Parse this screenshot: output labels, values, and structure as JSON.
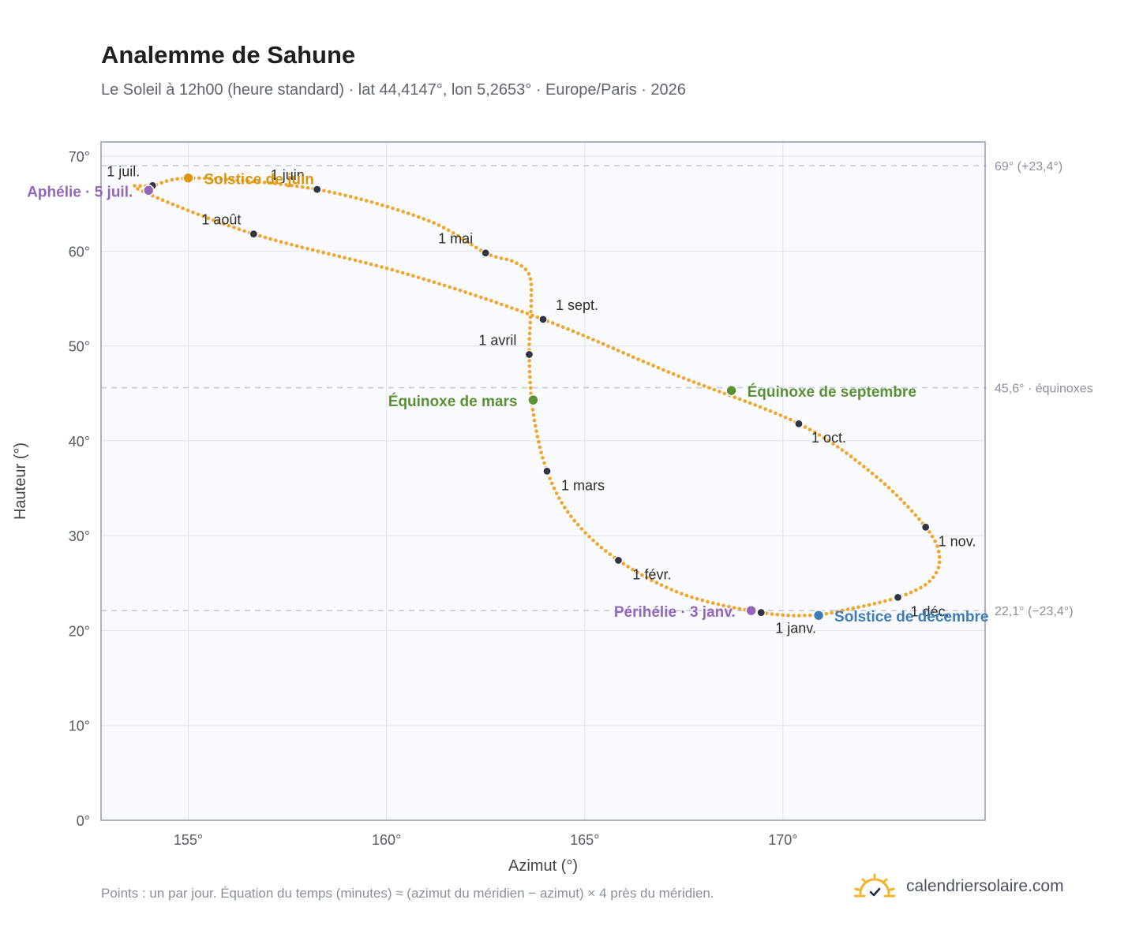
{
  "header": {
    "title": "Analemme de Sahune",
    "subtitle": "Le Soleil à 12h00 (heure standard) · lat 44,4147°, lon 5,2653° · Europe/Paris · 2026"
  },
  "footer": {
    "note": "Points : un par jour. Équation du temps (minutes) ≈ (azimut du méridien − azimut) × 4 près du méridien.",
    "brand": "calendriersolaire.com",
    "brand_icon": "sun-logo-icon"
  },
  "colors": {
    "curve": "#F2A42B",
    "month_marker": "#2F3542",
    "solstice_june": "#D9960E",
    "solstice_december": "#3E7CB8",
    "equinox": "#5B9135",
    "aphelion_perihelion": "#9466BB",
    "reference_line": "#C3CCD8",
    "plot_bg": "#F8FAFD",
    "grid": "#E3E8EF"
  },
  "chart_data": {
    "type": "scatter",
    "xlabel": "Azimut (°)",
    "ylabel": "Hauteur (°)",
    "xlim": [
      152.8,
      175.1
    ],
    "ylim": [
      0,
      71.5
    ],
    "xticks": [
      155,
      160,
      165,
      170
    ],
    "xtick_labels": [
      "155°",
      "160°",
      "165°",
      "170°"
    ],
    "yticks": [
      0,
      10,
      20,
      30,
      40,
      50,
      60,
      70
    ],
    "ytick_labels": [
      "0°",
      "10°",
      "20°",
      "30°",
      "40°",
      "50°",
      "60°",
      "70°"
    ],
    "grid": true,
    "reference_lines": [
      {
        "y": 69.0,
        "label": "69° (+23,4°)"
      },
      {
        "y": 45.6,
        "label": "45,6° · équinoxes"
      },
      {
        "y": 22.1,
        "label": "22,1° (−23,4°)"
      }
    ],
    "month_markers": [
      {
        "label": "1 janv.",
        "az": 169.45,
        "alt": 21.9
      },
      {
        "label": "1 févr.",
        "az": 165.85,
        "alt": 27.4
      },
      {
        "label": "1 mars",
        "az": 164.05,
        "alt": 36.8
      },
      {
        "label": "1 avril",
        "az": 163.6,
        "alt": 49.1
      },
      {
        "label": "1 mai",
        "az": 162.5,
        "alt": 59.8
      },
      {
        "label": "1 juin",
        "az": 158.25,
        "alt": 66.5
      },
      {
        "label": "1 juil.",
        "az": 154.1,
        "alt": 66.9
      },
      {
        "label": "1 août",
        "az": 156.65,
        "alt": 61.8
      },
      {
        "label": "1 sept.",
        "az": 163.95,
        "alt": 52.8
      },
      {
        "label": "1 oct.",
        "az": 170.4,
        "alt": 41.8
      },
      {
        "label": "1 nov.",
        "az": 173.6,
        "alt": 30.9
      },
      {
        "label": "1 déc.",
        "az": 172.9,
        "alt": 23.5
      }
    ],
    "events": [
      {
        "label": "Solstice de juin",
        "az": 155.0,
        "alt": 67.7,
        "kind": "solstice_june"
      },
      {
        "label": "Solstice de décembre",
        "az": 170.9,
        "alt": 21.6,
        "kind": "solstice_december"
      },
      {
        "label": "Équinoxe de mars",
        "az": 163.7,
        "alt": 44.3,
        "kind": "equinox"
      },
      {
        "label": "Équinoxe de septembre",
        "az": 168.7,
        "alt": 45.3,
        "kind": "equinox"
      },
      {
        "label": "Aphélie · 5 juil.",
        "az": 154.0,
        "alt": 66.4,
        "kind": "aphelion_perihelion"
      },
      {
        "label": "Périhélie · 3 janv.",
        "az": 169.2,
        "alt": 22.1,
        "kind": "aphelion_perihelion"
      }
    ],
    "series": [
      {
        "points_per": "day",
        "az": [
          169.45,
          167.5,
          165.85,
          164.7,
          164.05,
          163.7,
          163.6,
          163.65,
          163.6,
          163.2,
          162.5,
          161.0,
          158.25,
          155.2,
          154.1,
          153.8,
          156.65,
          160.5,
          163.95,
          167.2,
          170.4,
          172.3,
          173.6,
          173.95,
          173.7,
          172.9,
          171.6,
          170.7,
          169.45
        ],
        "alt": [
          21.9,
          23.8,
          27.4,
          31.8,
          36.8,
          43.0,
          49.1,
          54.6,
          57.5,
          58.9,
          59.8,
          63.3,
          66.5,
          67.7,
          66.9,
          66.4,
          61.8,
          57.6,
          52.8,
          47.1,
          41.8,
          36.4,
          30.9,
          27.7,
          25.2,
          23.5,
          22.2,
          21.6,
          21.9
        ]
      }
    ]
  }
}
